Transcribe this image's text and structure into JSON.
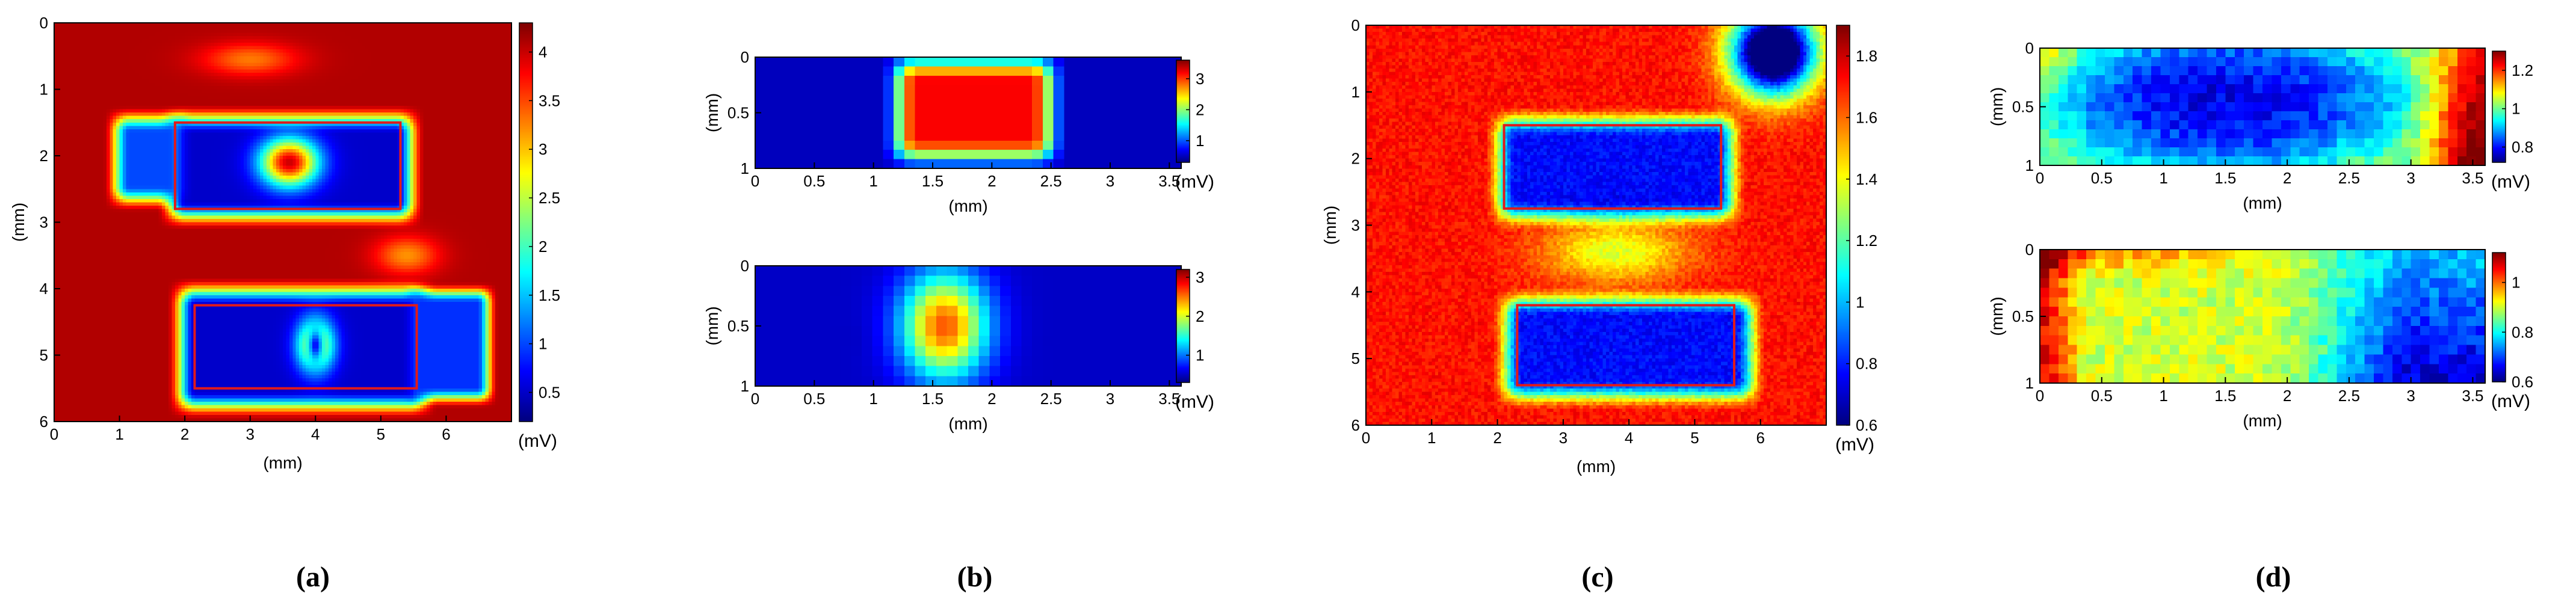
{
  "colormap": "jet",
  "roi_color": "#e11a1a",
  "chart_data": [
    {
      "id": "a",
      "type": "heatmap",
      "panel_label": "(a)",
      "xlabel": "(mm)",
      "ylabel": "(mm)",
      "colorbar_label": "(mV)",
      "xlim": [
        0,
        7
      ],
      "ylim": [
        0,
        6
      ],
      "y_reversed": true,
      "xticks": [
        "0",
        "1",
        "2",
        "3",
        "4",
        "5",
        "6"
      ],
      "yticks": [
        "0",
        "1",
        "2",
        "3",
        "4",
        "5",
        "6"
      ],
      "clim": [
        0.2,
        4.3
      ],
      "colorbar_ticks": [
        "0.5",
        "1",
        "1.5",
        "2",
        "2.5",
        "3",
        "3.5",
        "4"
      ],
      "colorbar_tick_values": [
        0.5,
        1,
        1.5,
        2,
        2.5,
        3,
        3.5,
        4
      ],
      "background_mv": 4.1,
      "features": [
        {
          "shape": "rect",
          "x": [
            1.85,
            5.4
          ],
          "y": [
            1.5,
            2.85
          ],
          "mv": 0.5,
          "soft": 0.55
        },
        {
          "shape": "rect",
          "x": [
            1.0,
            1.9
          ],
          "y": [
            1.5,
            2.6
          ],
          "mv": 1.0,
          "soft": 0.5
        },
        {
          "shape": "rect",
          "x": [
            2.0,
            5.6
          ],
          "y": [
            4.1,
            5.7
          ],
          "mv": 0.5,
          "soft": 0.55
        },
        {
          "shape": "rect",
          "x": [
            5.5,
            6.6
          ],
          "y": [
            4.1,
            5.6
          ],
          "mv": 0.9,
          "soft": 0.4
        },
        {
          "shape": "blob",
          "x": 3.6,
          "y": 2.1,
          "rx": 0.55,
          "ry": 0.45,
          "mv": 4.0
        },
        {
          "shape": "blob",
          "x": 4.0,
          "y": 4.85,
          "rx": 0.35,
          "ry": 0.5,
          "mv": 3.2
        },
        {
          "shape": "blob",
          "x": 4.0,
          "y": 4.85,
          "rx": 0.15,
          "ry": 0.28,
          "mv": -2.5
        },
        {
          "shape": "blob",
          "x": 3.0,
          "y": 0.55,
          "rx": 0.9,
          "ry": 0.3,
          "mv": -0.8
        },
        {
          "shape": "blob",
          "x": 5.4,
          "y": 3.5,
          "rx": 0.6,
          "ry": 0.35,
          "mv": -0.9
        }
      ],
      "roi": [
        {
          "x": [
            1.85,
            5.3
          ],
          "y": [
            1.5,
            2.8
          ]
        },
        {
          "x": [
            2.15,
            5.55
          ],
          "y": [
            4.25,
            5.5
          ]
        }
      ]
    },
    {
      "id": "b_top",
      "type": "heatmap",
      "xlabel": "(mm)",
      "ylabel": "(mm)",
      "colorbar_label": "(mV)",
      "xlim": [
        0,
        3.6
      ],
      "ylim": [
        0,
        1
      ],
      "y_reversed": true,
      "xticks": [
        "0",
        "0.5",
        "1",
        "1.5",
        "2",
        "2.5",
        "3",
        "3.5"
      ],
      "yticks": [
        "0",
        "0.5",
        "1"
      ],
      "ytick_values": [
        0,
        0.5,
        1
      ],
      "clim": [
        0.3,
        3.6
      ],
      "colorbar_ticks": [
        "1",
        "2",
        "3"
      ],
      "colorbar_tick_values": [
        1,
        2,
        3
      ],
      "background_mv": 0.5,
      "features": [
        {
          "shape": "rect",
          "x": [
            1.25,
            2.45
          ],
          "y": [
            0.1,
            0.85
          ],
          "mv": 3.2,
          "soft": 0.4
        },
        {
          "shape": "blob",
          "x": 0.35,
          "y": 0.5,
          "rx": 0.2,
          "ry": 0.25,
          "mv": 0.5
        },
        {
          "shape": "blob",
          "x": 3.1,
          "y": 0.5,
          "rx": 0.2,
          "ry": 0.25,
          "mv": 0.5
        }
      ]
    },
    {
      "id": "b_bottom",
      "type": "heatmap",
      "panel_label": "(b)",
      "xlabel": "(mm)",
      "ylabel": "(mm)",
      "colorbar_label": "(mV)",
      "xlim": [
        0,
        3.6
      ],
      "ylim": [
        0,
        1
      ],
      "y_reversed": true,
      "xticks": [
        "0",
        "0.5",
        "1",
        "1.5",
        "2",
        "2.5",
        "3",
        "3.5"
      ],
      "yticks": [
        "0",
        "0.5",
        "1"
      ],
      "ytick_values": [
        0,
        0.5,
        1
      ],
      "clim": [
        0.3,
        3.2
      ],
      "colorbar_ticks": [
        "1",
        "2",
        "3"
      ],
      "colorbar_tick_values": [
        1,
        2,
        3
      ],
      "background_mv": 0.5,
      "features": [
        {
          "shape": "blob",
          "x": 1.6,
          "y": 0.5,
          "rx": 0.45,
          "ry": 0.55,
          "mv": 2.6
        },
        {
          "shape": "blob",
          "x": 0.8,
          "y": 0.6,
          "rx": 0.15,
          "ry": 0.2,
          "mv": 0.5
        },
        {
          "shape": "blob",
          "x": 2.55,
          "y": 0.6,
          "rx": 0.15,
          "ry": 0.2,
          "mv": 0.5
        },
        {
          "shape": "blob",
          "x": 2.95,
          "y": 0.6,
          "rx": 0.15,
          "ry": 0.2,
          "mv": 0.5
        }
      ]
    },
    {
      "id": "c",
      "type": "heatmap",
      "panel_label": "(c)",
      "xlabel": "(mm)",
      "ylabel": "(mm)",
      "colorbar_label": "(mV)",
      "xlim": [
        0,
        7
      ],
      "ylim": [
        0,
        6
      ],
      "y_reversed": true,
      "xticks": [
        "0",
        "1",
        "2",
        "3",
        "4",
        "5",
        "6"
      ],
      "yticks": [
        "0",
        "1",
        "2",
        "3",
        "4",
        "5",
        "6"
      ],
      "clim": [
        0.6,
        1.9
      ],
      "colorbar_ticks": [
        "0.6",
        "0.8",
        "1",
        "1.2",
        "1.4",
        "1.6",
        "1.8"
      ],
      "colorbar_tick_values": [
        0.6,
        0.8,
        1,
        1.2,
        1.4,
        1.6,
        1.8
      ],
      "background_mv": 1.72,
      "noise": 0.05,
      "features": [
        {
          "shape": "rect",
          "x": [
            2.1,
            5.5
          ],
          "y": [
            1.5,
            2.8
          ],
          "mv": -0.95,
          "soft": 0.6
        },
        {
          "shape": "rect",
          "x": [
            2.2,
            5.8
          ],
          "y": [
            4.2,
            5.5
          ],
          "mv": -0.95,
          "soft": 0.6
        },
        {
          "shape": "blob",
          "x": 3.8,
          "y": 3.4,
          "rx": 1.4,
          "ry": 0.6,
          "mv": -0.35
        },
        {
          "shape": "blob",
          "x": 6.2,
          "y": 0.4,
          "rx": 0.8,
          "ry": 0.8,
          "mv": 0.15
        }
      ],
      "roi": [
        {
          "x": [
            2.1,
            5.4
          ],
          "y": [
            1.5,
            2.75
          ]
        },
        {
          "x": [
            2.3,
            5.6
          ],
          "y": [
            4.2,
            5.4
          ]
        }
      ]
    },
    {
      "id": "d_top",
      "type": "heatmap",
      "xlabel": "(mm)",
      "ylabel": "(mm)",
      "colorbar_label": "(mV)",
      "xlim": [
        0,
        3.6
      ],
      "ylim": [
        0,
        1
      ],
      "y_reversed": true,
      "xticks": [
        "0",
        "0.5",
        "1",
        "1.5",
        "2",
        "2.5",
        "3",
        "3.5"
      ],
      "yticks": [
        "0",
        "0.5",
        "1"
      ],
      "ytick_values": [
        0,
        0.5,
        1
      ],
      "clim": [
        0.72,
        1.3
      ],
      "colorbar_ticks": [
        "0.8",
        "1",
        "1.2"
      ],
      "colorbar_tick_values": [
        0.8,
        1,
        1.2
      ],
      "background_mv": 1.0,
      "noise": 0.035,
      "gradient": "d_top"
    },
    {
      "id": "d_bottom",
      "type": "heatmap",
      "panel_label": "(d)",
      "xlabel": "(mm)",
      "ylabel": "(mm)",
      "colorbar_label": "(mV)",
      "xlim": [
        0,
        3.6
      ],
      "ylim": [
        0,
        1
      ],
      "y_reversed": true,
      "xticks": [
        "0",
        "0.5",
        "1",
        "1.5",
        "2",
        "2.5",
        "3",
        "3.5"
      ],
      "yticks": [
        "0",
        "0.5",
        "1"
      ],
      "ytick_values": [
        0,
        0.5,
        1
      ],
      "clim": [
        0.6,
        1.12
      ],
      "colorbar_ticks": [
        "0.6",
        "0.8",
        "1"
      ],
      "colorbar_tick_values": [
        0.6,
        0.8,
        1
      ],
      "background_mv": 0.9,
      "noise": 0.035,
      "gradient": "d_bottom"
    }
  ]
}
